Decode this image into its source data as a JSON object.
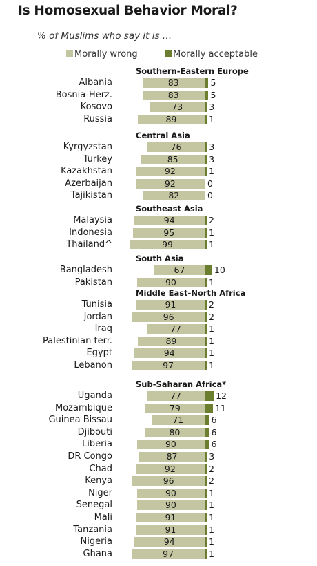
{
  "chart_data": {
    "type": "bar",
    "title": "Is Homosexual Behavior Moral?",
    "subtitle": "% of Muslims who say it is …",
    "legend": [
      {
        "name": "Morally wrong",
        "color": "#c4c6a2"
      },
      {
        "name": "Morally acceptable",
        "color": "#6b7d2e"
      }
    ],
    "groups": [
      {
        "name": "Southern-Eastern  Europe",
        "rows": [
          {
            "country": "Albania",
            "wrong": 83,
            "acceptable": 5
          },
          {
            "country": "Bosnia-Herz.",
            "wrong": 83,
            "acceptable": 5
          },
          {
            "country": "Kosovo",
            "wrong": 73,
            "acceptable": 3
          },
          {
            "country": "Russia",
            "wrong": 89,
            "acceptable": 1
          }
        ]
      },
      {
        "name": "Central Asia",
        "rows": [
          {
            "country": "Kyrgyzstan",
            "wrong": 76,
            "acceptable": 3
          },
          {
            "country": "Turkey",
            "wrong": 85,
            "acceptable": 3
          },
          {
            "country": "Kazakhstan",
            "wrong": 92,
            "acceptable": 1
          },
          {
            "country": "Azerbaijan",
            "wrong": 92,
            "acceptable": 0
          },
          {
            "country": "Tajikistan",
            "wrong": 82,
            "acceptable": 0
          }
        ]
      },
      {
        "name": "Southeast  Asia",
        "rows": [
          {
            "country": "Malaysia",
            "wrong": 94,
            "acceptable": 2
          },
          {
            "country": "Indonesia",
            "wrong": 95,
            "acceptable": 1
          },
          {
            "country": "Thailand^",
            "wrong": 99,
            "acceptable": 1
          }
        ]
      },
      {
        "name": "South Asia",
        "rows": [
          {
            "country": "Bangladesh",
            "wrong": 67,
            "acceptable": 10
          },
          {
            "country": "Pakistan",
            "wrong": 90,
            "acceptable": 1
          }
        ]
      },
      {
        "name": "Middle East-North  Africa",
        "rows": [
          {
            "country": "Tunisia",
            "wrong": 91,
            "acceptable": 2
          },
          {
            "country": "Jordan",
            "wrong": 96,
            "acceptable": 2
          },
          {
            "country": "Iraq",
            "wrong": 77,
            "acceptable": 1
          },
          {
            "country": "Palestinian terr.",
            "wrong": 89,
            "acceptable": 1
          },
          {
            "country": "Egypt",
            "wrong": 94,
            "acceptable": 1
          },
          {
            "country": "Lebanon",
            "wrong": 97,
            "acceptable": 1
          }
        ]
      },
      {
        "name": "Sub-Saharan  Africa*",
        "rows": [
          {
            "country": "Uganda",
            "wrong": 77,
            "acceptable": 12
          },
          {
            "country": "Mozambique",
            "wrong": 79,
            "acceptable": 11
          },
          {
            "country": "Guinea Bissau",
            "wrong": 71,
            "acceptable": 6
          },
          {
            "country": "Djibouti",
            "wrong": 80,
            "acceptable": 6
          },
          {
            "country": "Liberia",
            "wrong": 90,
            "acceptable": 6
          },
          {
            "country": "DR Congo",
            "wrong": 87,
            "acceptable": 3
          },
          {
            "country": "Chad",
            "wrong": 92,
            "acceptable": 2
          },
          {
            "country": "Kenya",
            "wrong": 96,
            "acceptable": 2
          },
          {
            "country": "Niger",
            "wrong": 90,
            "acceptable": 1
          },
          {
            "country": "Senegal",
            "wrong": 90,
            "acceptable": 1
          },
          {
            "country": "Mali",
            "wrong": 91,
            "acceptable": 1
          },
          {
            "country": "Tanzania",
            "wrong": 91,
            "acceptable": 1
          },
          {
            "country": "Nigeria",
            "wrong": 94,
            "acceptable": 1
          },
          {
            "country": "Ghana",
            "wrong": 97,
            "acceptable": 1
          }
        ]
      }
    ]
  }
}
